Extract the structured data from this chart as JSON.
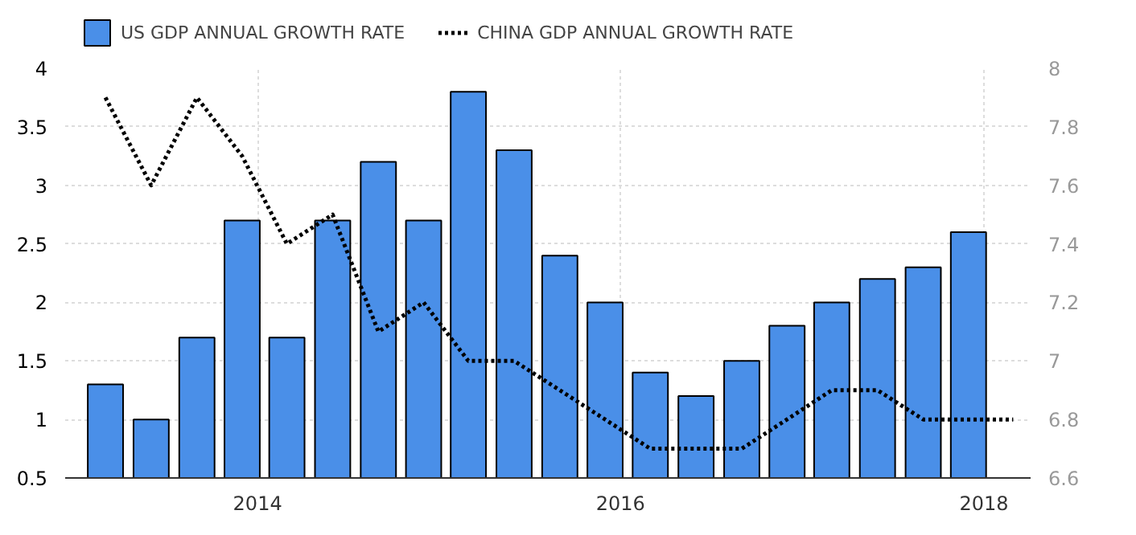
{
  "chart_data": {
    "type": "bar",
    "x": [
      "2013-03-01",
      "2013-06-01",
      "2013-09-01",
      "2013-12-01",
      "2014-03-01",
      "2014-06-01",
      "2014-09-01",
      "2014-12-01",
      "2015-03-01",
      "2015-06-01",
      "2015-09-01",
      "2015-12-01",
      "2016-03-01",
      "2016-06-01",
      "2016-09-01",
      "2016-12-01",
      "2017-03-01",
      "2017-06-01",
      "2017-09-01",
      "2017-12-01"
    ],
    "series": [
      {
        "name": "US GDP ANNUAL GROWTH RATE",
        "color": "#4a8fe8",
        "values": [
          1.3,
          1.0,
          1.7,
          2.7,
          1.7,
          2.7,
          3.2,
          2.7,
          3.8,
          3.3,
          2.4,
          2.0,
          1.4,
          1.2,
          1.5,
          1.8,
          2.0,
          2.2,
          2.3,
          2.6
        ]
      },
      {
        "name": "CHINA GDP ANNUAL GROWTH RATE",
        "type": "line",
        "axis": "y2",
        "color": "#000000",
        "line_style": "dotted",
        "x": [
          "2013-03-01",
          "2013-06-01",
          "2013-09-01",
          "2013-12-01",
          "2014-03-01",
          "2014-06-01",
          "2014-09-01",
          "2014-12-01",
          "2015-03-01",
          "2015-06-01",
          "2015-09-01",
          "2015-12-01",
          "2016-03-01",
          "2016-06-01",
          "2016-09-01",
          "2016-12-01",
          "2017-03-01",
          "2017-06-01",
          "2017-09-01",
          "2017-12-01",
          "2018-03-01"
        ],
        "values": [
          7.9,
          7.6,
          7.9,
          7.7,
          7.4,
          7.5,
          7.1,
          7.2,
          7.0,
          7.0,
          6.9,
          6.8,
          6.7,
          6.7,
          6.7,
          6.8,
          6.9,
          6.9,
          6.8,
          6.8,
          6.8
        ]
      }
    ],
    "xlim": [
      "2012-12-10",
      "2018-04-05"
    ],
    "xticks": [
      {
        "value": "2014-01-01",
        "label": "2014"
      },
      {
        "value": "2016-01-01",
        "label": "2016"
      },
      {
        "value": "2018-01-01",
        "label": "2018"
      }
    ],
    "ylim": [
      0.5,
      4
    ],
    "yticks": [
      0.5,
      1,
      1.5,
      2,
      2.5,
      3,
      3.5,
      4
    ],
    "y2lim": [
      6.6,
      8
    ],
    "y2ticks": [
      6.6,
      6.8,
      7,
      7.2,
      7.4,
      7.6,
      7.8,
      8
    ],
    "grid": true,
    "legend": "top left"
  }
}
